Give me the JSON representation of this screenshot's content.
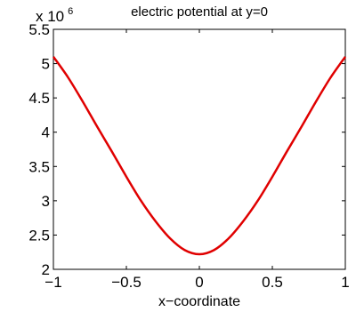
{
  "chart_data": {
    "type": "line",
    "title": "electric potential at y=0",
    "xlabel": "x−coordinate",
    "ylabel": "",
    "y_multiplier": {
      "base": "x 10",
      "exponent": "6"
    },
    "xlim": [
      -1,
      1
    ],
    "ylim": [
      2,
      5.5
    ],
    "xticks": [
      -1,
      -0.5,
      0,
      0.5,
      1
    ],
    "xtick_labels": [
      "−1",
      "−0.5",
      "0",
      "0.5",
      "1"
    ],
    "yticks": [
      2,
      2.5,
      3,
      3.5,
      4,
      4.5,
      5,
      5.5
    ],
    "ytick_labels": [
      "2",
      "2.5",
      "3",
      "3.5",
      "4",
      "4.5",
      "5",
      "5.5"
    ],
    "grid": false,
    "series": [
      {
        "color": "#e00000",
        "x": [
          -1,
          -0.9,
          -0.8,
          -0.7,
          -0.6,
          -0.5,
          -0.4,
          -0.3,
          -0.2,
          -0.1,
          0,
          0.1,
          0.2,
          0.3,
          0.4,
          0.5,
          0.6,
          0.7,
          0.8,
          0.9,
          1
        ],
        "y": [
          5.1,
          4.8,
          4.45,
          4.08,
          3.72,
          3.35,
          3.0,
          2.7,
          2.45,
          2.28,
          2.22,
          2.28,
          2.45,
          2.7,
          3.0,
          3.35,
          3.72,
          4.08,
          4.45,
          4.8,
          5.1
        ]
      }
    ]
  }
}
